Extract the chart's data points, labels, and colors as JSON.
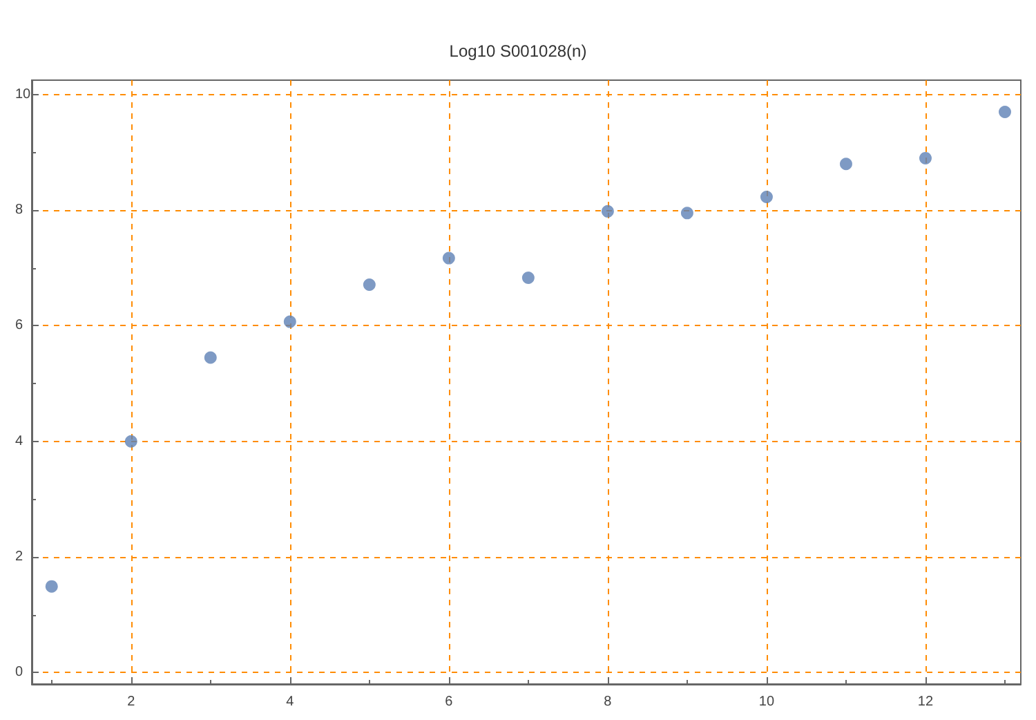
{
  "chart_data": {
    "type": "scatter",
    "title": "Log10 S001028(n)",
    "x": [
      1,
      2,
      3,
      4,
      5,
      6,
      7,
      8,
      9,
      10,
      11,
      12,
      13
    ],
    "series": [
      {
        "color": "#5e81b5",
        "values": [
          1.49,
          4.0,
          5.45,
          6.07,
          6.71,
          7.17,
          6.83,
          7.98,
          7.95,
          8.23,
          8.8,
          8.9,
          9.7
        ]
      }
    ],
    "xlim": [
      0.75,
      13.2
    ],
    "xticks": [
      2,
      4,
      6,
      8,
      10,
      12
    ],
    "ylim": [
      -0.2,
      10.25
    ],
    "yticks": [
      0,
      2,
      4,
      6,
      8,
      10
    ],
    "grid": true,
    "marker": "circle"
  }
}
